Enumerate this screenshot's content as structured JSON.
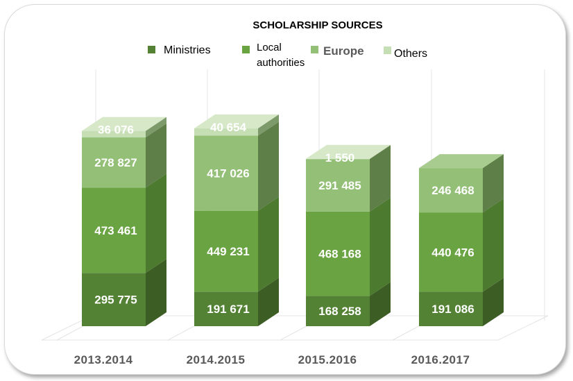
{
  "chart_data": {
    "type": "bar",
    "stacked": true,
    "three_d": true,
    "title": "SCHOLARSHIP SOURCES",
    "categories": [
      "2013.2014",
      "2014.2015",
      "2015.2016",
      "2016.2017"
    ],
    "series": [
      {
        "name": "Ministries",
        "values": [
          295775,
          191671,
          168258,
          191086
        ],
        "labels": [
          "295 775",
          "191 671",
          "168 258",
          "191 086"
        ]
      },
      {
        "name": "Local authorities",
        "values": [
          473461,
          449231,
          468168,
          440476
        ],
        "labels": [
          "473 461",
          "449 231",
          "468 168",
          "440 476"
        ]
      },
      {
        "name": "Europe",
        "values": [
          278827,
          417026,
          291485,
          246468
        ],
        "labels": [
          "278 827",
          "417 026",
          "291 485",
          "246 468"
        ]
      },
      {
        "name": "Others",
        "values": [
          36076,
          40654,
          1550,
          0
        ],
        "labels": [
          "36 076",
          "40 654",
          "1 550",
          ""
        ]
      }
    ],
    "legend": {
      "position": "top",
      "items": [
        {
          "line1": "Ministries",
          "line2": ""
        },
        {
          "line1": "Local",
          "line2": "authorities"
        },
        {
          "line1": "Europe",
          "line2": ""
        },
        {
          "line1": "Others",
          "line2": ""
        }
      ]
    },
    "colors": {
      "Ministries": {
        "front": "#548235",
        "side": "#3c5e24",
        "top": "#67973f"
      },
      "Local authorities": {
        "front": "#6aa342",
        "side": "#4c7a2e",
        "top": "#7db556"
      },
      "Europe": {
        "front": "#93bf76",
        "side": "#5f7f49",
        "top": "#a8cc8f"
      },
      "Others": {
        "front": "#c6deb3",
        "side": "#7d9a6a",
        "top": "#d6e8c8"
      },
      "legend_swatches": [
        "#548235",
        "#6aa342",
        "#93bf76",
        "#c6deb3"
      ]
    },
    "grid": true
  }
}
